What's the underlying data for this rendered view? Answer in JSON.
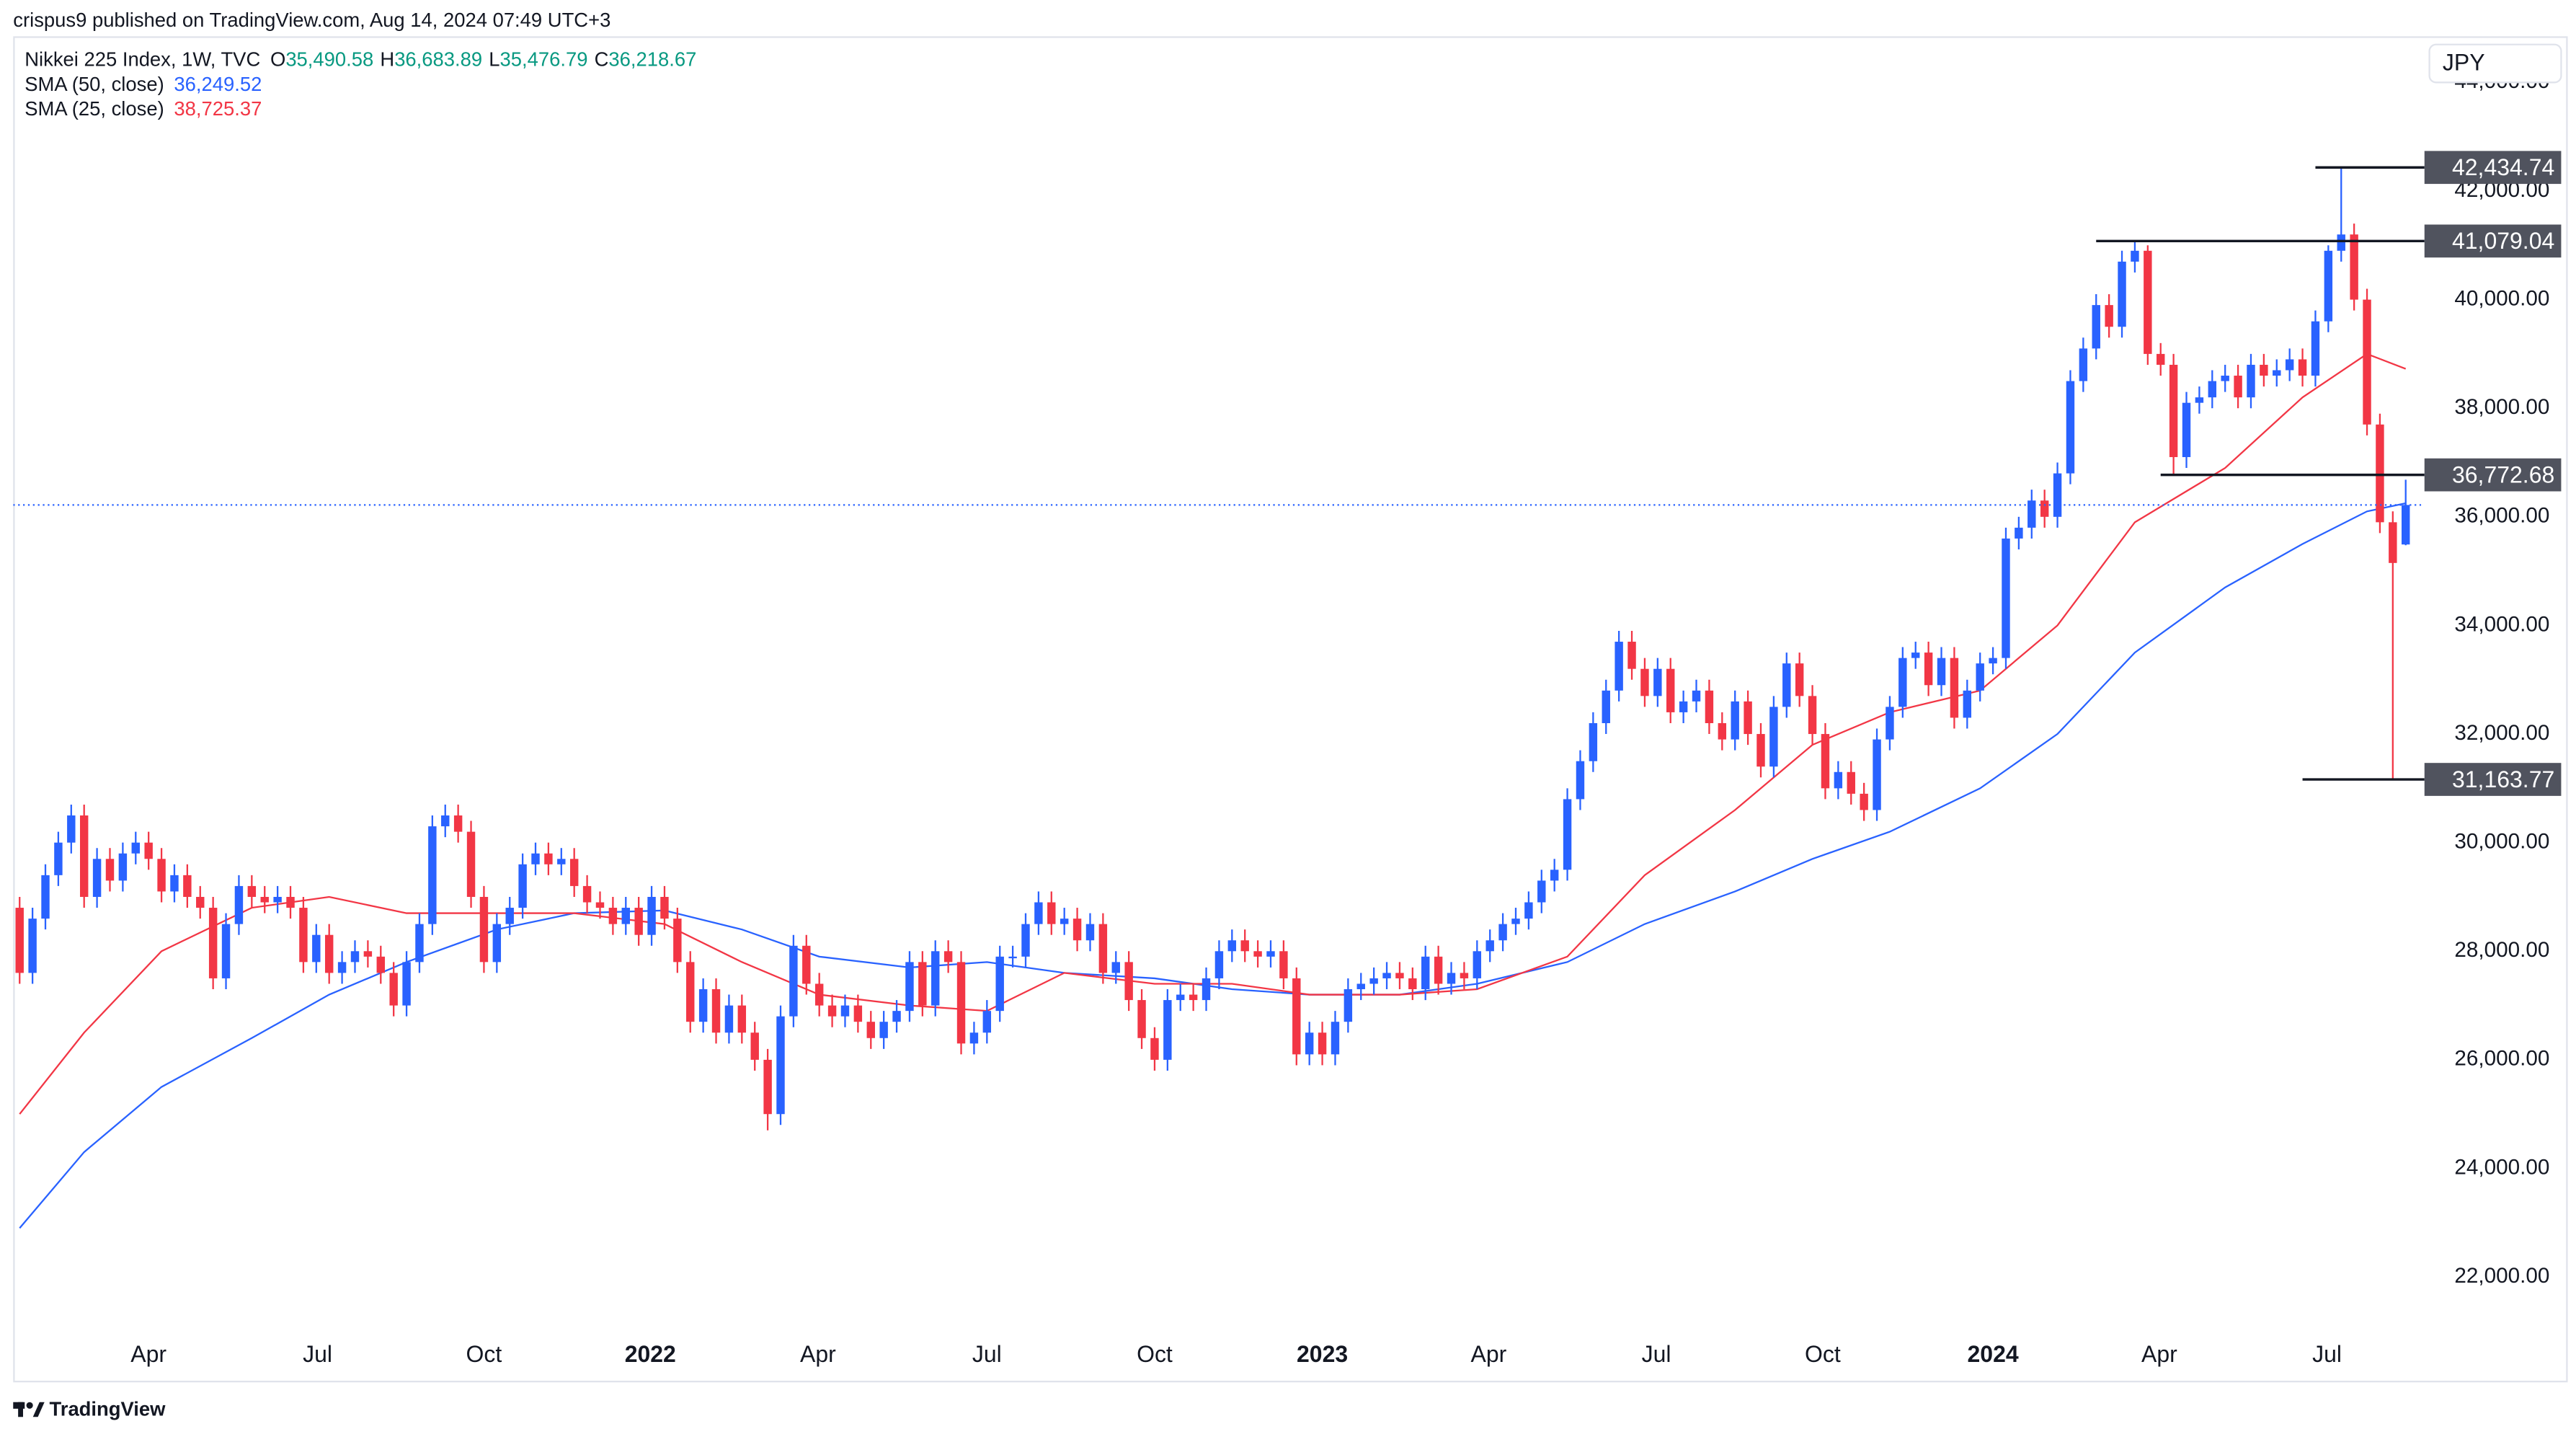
{
  "header": "crispus9 published on TradingView.com, Aug 14, 2024 07:49 UTC+3",
  "footer": "TradingView",
  "chart_data": {
    "type": "candlestick",
    "title": "Nikkei 225 Index, 1W, TVC",
    "currency": "JPY",
    "ohlc_legend": [
      {
        "key": "O",
        "label": "35,490.58"
      },
      {
        "key": "H",
        "label": "36,683.89"
      },
      {
        "key": "L",
        "label": "35,476.79"
      },
      {
        "key": "C",
        "label": "36,218.67"
      }
    ],
    "up_color": "#2962ff",
    "down_color": "#f23645",
    "legend_value_color": "#089981",
    "grid": false,
    "xlim": [
      -0.5,
      186.2
    ],
    "xticks": [
      {
        "value": 10,
        "label": "Apr"
      },
      {
        "value": 23.1,
        "label": "Jul"
      },
      {
        "value": 36,
        "label": "Oct"
      },
      {
        "value": 48.9,
        "label": "2022"
      },
      {
        "value": 61.9,
        "label": "Apr"
      },
      {
        "value": 75,
        "label": "Jul"
      },
      {
        "value": 88,
        "label": "Oct"
      },
      {
        "value": 101,
        "label": "2023"
      },
      {
        "value": 113.9,
        "label": "Apr"
      },
      {
        "value": 126.9,
        "label": "Jul"
      },
      {
        "value": 139.8,
        "label": "Oct"
      },
      {
        "value": 153,
        "label": "2024"
      },
      {
        "value": 165.9,
        "label": "Apr"
      },
      {
        "value": 178.9,
        "label": "Jul"
      }
    ],
    "ylim": [
      21000,
      44820
    ],
    "yticks": [
      {
        "value": 22000,
        "label": "22,000.00"
      },
      {
        "value": 24000,
        "label": "24,000.00"
      },
      {
        "value": 26000,
        "label": "26,000.00"
      },
      {
        "value": 28000,
        "label": "28,000.00"
      },
      {
        "value": 30000,
        "label": "30,000.00"
      },
      {
        "value": 32000,
        "label": "32,000.00"
      },
      {
        "value": 34000,
        "label": "34,000.00"
      },
      {
        "value": 36000,
        "label": "36,000.00"
      },
      {
        "value": 38000,
        "label": "38,000.00"
      },
      {
        "value": 40000,
        "label": "40,000.00"
      },
      {
        "value": 42000,
        "label": "42,000.00"
      },
      {
        "value": 44000,
        "label": "44,000.00"
      }
    ],
    "candles": {
      "open": [
        28800,
        27600,
        28600,
        29400,
        30000,
        30500,
        29000,
        29700,
        29300,
        29800,
        30000,
        29700,
        29100,
        29400,
        29000,
        28800,
        27500,
        28500,
        29200,
        29000,
        28900,
        29000,
        28800,
        27800,
        28300,
        27600,
        27800,
        28000,
        27900,
        27600,
        27000,
        27800,
        28500,
        30300,
        30500,
        30200,
        29000,
        27800,
        28500,
        28800,
        29600,
        29800,
        29600,
        29700,
        29200,
        28900,
        28800,
        28500,
        28800,
        28300,
        29000,
        28600,
        27800,
        26700,
        27300,
        26500,
        27000,
        26500,
        26000,
        25000,
        26800,
        28100,
        27400,
        27000,
        26800,
        27000,
        26700,
        26400,
        26700,
        26900,
        27800,
        27000,
        28000,
        27800,
        26300,
        26500,
        26900,
        27900,
        27900,
        28500,
        28900,
        28500,
        28600,
        28200,
        28500,
        27600,
        27800,
        27100,
        26400,
        26000,
        27100,
        27200,
        27100,
        27500,
        28000,
        28200,
        28000,
        27900,
        28000,
        27500,
        26100,
        26500,
        26100,
        26700,
        27300,
        27400,
        27500,
        27600,
        27500,
        27300,
        27900,
        27400,
        27600,
        27500,
        28000,
        28200,
        28500,
        28600,
        28900,
        29300,
        29500,
        30800,
        31500,
        32200,
        32800,
        33700,
        33200,
        32700,
        33200,
        32400,
        32600,
        32800,
        32200,
        31900,
        32600,
        32000,
        31400,
        32500,
        33300,
        32700,
        32000,
        31000,
        31300,
        30900,
        30600,
        31900,
        32500,
        33400,
        33500,
        32900,
        33400,
        32300,
        32800,
        33300,
        33400,
        35600,
        35800,
        36300,
        36000,
        36800,
        38500,
        39100,
        39900,
        39500,
        40700,
        40900,
        39000,
        38800,
        37100,
        38100,
        38200,
        38500,
        38600,
        38200,
        38800,
        38600,
        38700,
        38900,
        38600,
        39600,
        40900,
        41200,
        40000,
        37700,
        35900,
        35490.58
      ],
      "high": [
        29000,
        28800,
        29600,
        30200,
        30700,
        30700,
        29900,
        29900,
        30000,
        30200,
        30200,
        29900,
        29600,
        29600,
        29200,
        29000,
        28700,
        29400,
        29400,
        29200,
        29200,
        29200,
        29000,
        28500,
        28500,
        28000,
        28200,
        28200,
        28100,
        27800,
        28000,
        28700,
        30500,
        30700,
        30700,
        30400,
        29200,
        28700,
        29000,
        29800,
        30000,
        30000,
        29900,
        29900,
        29400,
        29100,
        29000,
        29000,
        29000,
        29200,
        29200,
        28800,
        28000,
        27500,
        27500,
        27200,
        27200,
        26700,
        26200,
        27000,
        28300,
        28300,
        27600,
        27200,
        27200,
        27200,
        26900,
        26900,
        27100,
        28000,
        28000,
        28200,
        28200,
        28000,
        26700,
        27100,
        28100,
        28100,
        28700,
        29100,
        29100,
        28800,
        28800,
        28700,
        28700,
        28000,
        28000,
        27300,
        26600,
        27300,
        27400,
        27400,
        27700,
        28200,
        28400,
        28400,
        28200,
        28200,
        28200,
        27700,
        26700,
        26700,
        26900,
        27500,
        27600,
        27700,
        27800,
        27800,
        27700,
        28100,
        28100,
        27800,
        27800,
        28200,
        28400,
        28700,
        28800,
        29100,
        29500,
        29700,
        31000,
        31700,
        32400,
        33000,
        33900,
        33900,
        33400,
        33400,
        33400,
        32800,
        33000,
        33000,
        32400,
        32800,
        32800,
        32200,
        32700,
        33500,
        33500,
        32900,
        32200,
        31500,
        31500,
        31100,
        32100,
        32700,
        33600,
        33700,
        33700,
        33600,
        33600,
        33000,
        33500,
        33600,
        35800,
        36000,
        36500,
        36500,
        37000,
        38700,
        39300,
        40100,
        40100,
        40900,
        41079.04,
        41000,
        39200,
        39000,
        38300,
        38400,
        38700,
        38800,
        38800,
        39000,
        39000,
        38900,
        39100,
        39100,
        39800,
        41000,
        42434.74,
        41400,
        40200,
        37900,
        36100,
        36683.89
      ],
      "low": [
        27400,
        27400,
        28400,
        29200,
        29800,
        28800,
        28800,
        29100,
        29100,
        29600,
        29500,
        28900,
        28900,
        28800,
        28600,
        27300,
        27300,
        28300,
        28800,
        28700,
        28700,
        28600,
        27600,
        27600,
        27400,
        27400,
        27600,
        27700,
        27400,
        26800,
        26800,
        27600,
        28300,
        30100,
        30000,
        28800,
        27600,
        27600,
        28300,
        28600,
        29400,
        29400,
        29400,
        29000,
        28700,
        28600,
        28300,
        28300,
        28100,
        28100,
        28400,
        27600,
        26500,
        26500,
        26300,
        26300,
        26300,
        25800,
        24700,
        24800,
        26600,
        27200,
        26800,
        26600,
        26600,
        26500,
        26200,
        26200,
        26500,
        26700,
        26800,
        26800,
        27600,
        26100,
        26100,
        26300,
        26700,
        27700,
        27700,
        28300,
        28300,
        28300,
        28000,
        28000,
        27400,
        27400,
        26900,
        26200,
        25800,
        25800,
        26900,
        26900,
        26900,
        27300,
        27800,
        27800,
        27700,
        27700,
        27300,
        25900,
        25900,
        25900,
        25900,
        26500,
        27100,
        27200,
        27300,
        27300,
        27100,
        27100,
        27200,
        27200,
        27300,
        27300,
        27800,
        28000,
        28300,
        28400,
        28700,
        29100,
        29300,
        30600,
        31300,
        32000,
        32600,
        33000,
        32500,
        32500,
        32200,
        32200,
        32400,
        32000,
        31700,
        31700,
        31800,
        31200,
        31200,
        32300,
        32500,
        31800,
        30800,
        30800,
        30700,
        30400,
        30400,
        31700,
        32300,
        33200,
        32700,
        32700,
        32100,
        32100,
        32600,
        33100,
        33200,
        35400,
        35600,
        35800,
        35800,
        36600,
        38300,
        38900,
        39300,
        39300,
        40500,
        38800,
        38600,
        36772.68,
        36900,
        37900,
        38000,
        38300,
        38000,
        38000,
        38400,
        38400,
        38500,
        38400,
        38400,
        39400,
        40700,
        39800,
        37500,
        35700,
        31163.77,
        35476.79
      ],
      "close": [
        27600,
        28600,
        29400,
        30000,
        30500,
        29000,
        29700,
        29300,
        29800,
        30000,
        29700,
        29100,
        29400,
        29000,
        28800,
        27500,
        28500,
        29200,
        29000,
        28900,
        29000,
        28800,
        27800,
        28300,
        27600,
        27800,
        28000,
        27900,
        27600,
        27000,
        27800,
        28500,
        30300,
        30500,
        30200,
        29000,
        27800,
        28500,
        28800,
        29600,
        29800,
        29600,
        29700,
        29200,
        28900,
        28800,
        28500,
        28800,
        28300,
        29000,
        28600,
        27800,
        26700,
        27300,
        26500,
        27000,
        26500,
        26000,
        25000,
        26800,
        28100,
        27400,
        27000,
        26800,
        27000,
        26700,
        26400,
        26700,
        26900,
        27800,
        27000,
        28000,
        27800,
        26300,
        26500,
        26900,
        27900,
        27900,
        28500,
        28900,
        28500,
        28600,
        28200,
        28500,
        27600,
        27800,
        27100,
        26400,
        26000,
        27100,
        27200,
        27100,
        27500,
        28000,
        28200,
        28000,
        27900,
        28000,
        27500,
        26100,
        26500,
        26100,
        26700,
        27300,
        27400,
        27500,
        27600,
        27500,
        27300,
        27900,
        27400,
        27600,
        27500,
        28000,
        28200,
        28500,
        28600,
        28900,
        29300,
        29500,
        30800,
        31500,
        32200,
        32800,
        33700,
        33200,
        32700,
        33200,
        32400,
        32600,
        32800,
        32200,
        31900,
        32600,
        32000,
        31400,
        32500,
        33300,
        32700,
        32000,
        31000,
        31300,
        30900,
        30600,
        31900,
        32500,
        33400,
        33500,
        32900,
        33400,
        32300,
        32800,
        33300,
        33400,
        35600,
        35800,
        36300,
        36000,
        36800,
        38500,
        39100,
        39900,
        39500,
        40700,
        40900,
        39000,
        38800,
        37100,
        38100,
        38200,
        38500,
        38600,
        38200,
        38800,
        38600,
        38700,
        38900,
        38600,
        39600,
        40900,
        41200,
        40000,
        37700,
        35900,
        35150,
        36218.67
      ]
    },
    "series": [
      {
        "name": "SMA (50, close)",
        "color": "#2962ff",
        "last_label": "36,249.52",
        "x": [
          0,
          5,
          11,
          18,
          24,
          30,
          37,
          43,
          50,
          56,
          62,
          69,
          75,
          81,
          88,
          94,
          100,
          107,
          113,
          120,
          126,
          133,
          139,
          145,
          152,
          158,
          164,
          171,
          177,
          182,
          185
        ],
        "values": [
          22900,
          24300,
          25500,
          26400,
          27200,
          27800,
          28400,
          28700,
          28750,
          28400,
          27900,
          27700,
          27800,
          27600,
          27500,
          27300,
          27200,
          27200,
          27400,
          27800,
          28500,
          29100,
          29700,
          30200,
          31000,
          32000,
          33500,
          34700,
          35500,
          36100,
          36249.52
        ]
      },
      {
        "name": "SMA (25, close)",
        "color": "#f23645",
        "last_label": "38,725.37",
        "x": [
          0,
          5,
          11,
          18,
          24,
          30,
          37,
          43,
          50,
          56,
          62,
          69,
          75,
          81,
          88,
          94,
          100,
          107,
          113,
          120,
          126,
          133,
          139,
          145,
          152,
          158,
          164,
          171,
          177,
          182,
          185
        ],
        "values": [
          25000,
          26500,
          28000,
          28800,
          29000,
          28700,
          28700,
          28700,
          28500,
          27800,
          27200,
          27000,
          26900,
          27600,
          27400,
          27400,
          27200,
          27200,
          27300,
          27900,
          29400,
          30600,
          31800,
          32400,
          32800,
          34000,
          35900,
          36900,
          38200,
          39000,
          38725.37
        ]
      }
    ],
    "levels": [
      {
        "value": 42434.74,
        "label": "42,434.74"
      },
      {
        "value": 41079.04,
        "label": "41,079.04"
      },
      {
        "value": 36772.68,
        "label": "36,772.68"
      },
      {
        "value": 31163.77,
        "label": "31,163.77"
      }
    ]
  }
}
